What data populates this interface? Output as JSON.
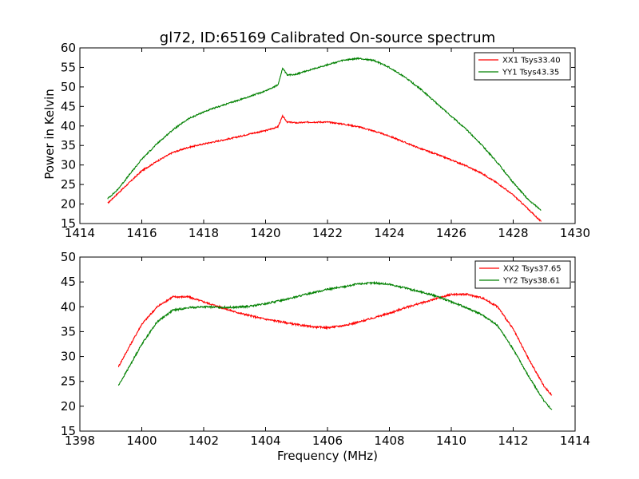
{
  "chart_data": [
    {
      "type": "line",
      "title": "gl72, ID:65169 Calibrated On-source spectrum",
      "xlabel": "",
      "ylabel": "Power in Kelvin",
      "xlim": [
        1414,
        1430
      ],
      "ylim": [
        15,
        60
      ],
      "xticks": [
        1414,
        1416,
        1418,
        1420,
        1422,
        1424,
        1426,
        1428,
        1430
      ],
      "yticks": [
        15,
        20,
        25,
        30,
        35,
        40,
        45,
        50,
        55,
        60
      ],
      "grid": false,
      "legend_position": "top-right",
      "series": [
        {
          "name": "XX1 Tsys33.40",
          "color": "#ff0000",
          "points": [
            [
              1414.9,
              20.2
            ],
            [
              1415.2,
              22.5
            ],
            [
              1415.6,
              25.5
            ],
            [
              1416.0,
              28.5
            ],
            [
              1416.5,
              31.0
            ],
            [
              1417.0,
              33.2
            ],
            [
              1417.5,
              34.5
            ],
            [
              1418.0,
              35.4
            ],
            [
              1418.5,
              36.2
            ],
            [
              1419.0,
              37.0
            ],
            [
              1419.5,
              38.0
            ],
            [
              1420.0,
              38.8
            ],
            [
              1420.4,
              39.8
            ],
            [
              1420.55,
              42.5
            ],
            [
              1420.7,
              41.0
            ],
            [
              1421.0,
              40.8
            ],
            [
              1421.5,
              41.0
            ],
            [
              1422.0,
              41.0
            ],
            [
              1422.5,
              40.5
            ],
            [
              1423.0,
              39.8
            ],
            [
              1423.5,
              38.7
            ],
            [
              1424.0,
              37.4
            ],
            [
              1424.5,
              35.8
            ],
            [
              1425.0,
              34.2
            ],
            [
              1425.5,
              32.8
            ],
            [
              1426.0,
              31.3
            ],
            [
              1426.5,
              29.7
            ],
            [
              1427.0,
              27.8
            ],
            [
              1427.5,
              25.3
            ],
            [
              1428.0,
              22.3
            ],
            [
              1428.5,
              18.6
            ],
            [
              1428.9,
              15.5
            ]
          ]
        },
        {
          "name": "YY1 Tsys43.35",
          "color": "#008000",
          "points": [
            [
              1414.9,
              21.4
            ],
            [
              1415.2,
              23.5
            ],
            [
              1415.6,
              27.5
            ],
            [
              1416.0,
              31.5
            ],
            [
              1416.5,
              35.5
            ],
            [
              1417.0,
              39.0
            ],
            [
              1417.5,
              41.8
            ],
            [
              1418.0,
              43.6
            ],
            [
              1418.5,
              45.0
            ],
            [
              1419.0,
              46.3
            ],
            [
              1419.5,
              47.6
            ],
            [
              1420.0,
              49.0
            ],
            [
              1420.4,
              50.5
            ],
            [
              1420.55,
              54.8
            ],
            [
              1420.7,
              53.0
            ],
            [
              1421.0,
              53.3
            ],
            [
              1421.5,
              54.5
            ],
            [
              1422.0,
              55.7
            ],
            [
              1422.5,
              56.8
            ],
            [
              1423.0,
              57.3
            ],
            [
              1423.5,
              56.8
            ],
            [
              1424.0,
              55.0
            ],
            [
              1424.5,
              52.5
            ],
            [
              1425.0,
              49.5
            ],
            [
              1425.5,
              46.0
            ],
            [
              1426.0,
              42.5
            ],
            [
              1426.5,
              39.0
            ],
            [
              1427.0,
              35.0
            ],
            [
              1427.5,
              30.5
            ],
            [
              1428.0,
              25.5
            ],
            [
              1428.5,
              21.0
            ],
            [
              1428.9,
              18.5
            ]
          ]
        }
      ]
    },
    {
      "type": "line",
      "title": "",
      "xlabel": "Frequency (MHz)",
      "ylabel": "",
      "xlim": [
        1398,
        1414
      ],
      "ylim": [
        15,
        50
      ],
      "xticks": [
        1398,
        1400,
        1402,
        1404,
        1406,
        1408,
        1410,
        1412,
        1414
      ],
      "yticks": [
        15,
        20,
        25,
        30,
        35,
        40,
        45,
        50
      ],
      "grid": false,
      "legend_position": "top-right",
      "series": [
        {
          "name": "XX2 Tsys37.65",
          "color": "#ff0000",
          "points": [
            [
              1399.25,
              28.0
            ],
            [
              1399.6,
              32.0
            ],
            [
              1400.0,
              36.5
            ],
            [
              1400.5,
              40.0
            ],
            [
              1401.0,
              42.0
            ],
            [
              1401.5,
              42.0
            ],
            [
              1402.0,
              41.0
            ],
            [
              1402.5,
              40.0
            ],
            [
              1403.0,
              39.0
            ],
            [
              1403.5,
              38.2
            ],
            [
              1404.0,
              37.5
            ],
            [
              1404.5,
              37.0
            ],
            [
              1405.0,
              36.4
            ],
            [
              1405.5,
              36.0
            ],
            [
              1406.0,
              35.8
            ],
            [
              1406.5,
              36.2
            ],
            [
              1407.0,
              36.9
            ],
            [
              1407.5,
              37.8
            ],
            [
              1408.0,
              38.7
            ],
            [
              1408.5,
              39.8
            ],
            [
              1409.0,
              40.7
            ],
            [
              1409.5,
              41.6
            ],
            [
              1410.0,
              42.5
            ],
            [
              1410.5,
              42.5
            ],
            [
              1411.0,
              41.8
            ],
            [
              1411.5,
              40.0
            ],
            [
              1412.0,
              35.5
            ],
            [
              1412.5,
              29.5
            ],
            [
              1413.0,
              24.0
            ],
            [
              1413.25,
              22.2
            ]
          ]
        },
        {
          "name": "YY2 Tsys38.61",
          "color": "#008000",
          "points": [
            [
              1399.25,
              24.2
            ],
            [
              1399.6,
              28.0
            ],
            [
              1400.0,
              32.5
            ],
            [
              1400.5,
              37.0
            ],
            [
              1401.0,
              39.3
            ],
            [
              1401.5,
              39.8
            ],
            [
              1402.0,
              40.0
            ],
            [
              1402.5,
              39.9
            ],
            [
              1403.0,
              39.9
            ],
            [
              1403.5,
              40.1
            ],
            [
              1404.0,
              40.6
            ],
            [
              1404.5,
              41.3
            ],
            [
              1405.0,
              42.0
            ],
            [
              1405.5,
              42.8
            ],
            [
              1406.0,
              43.5
            ],
            [
              1406.5,
              44.0
            ],
            [
              1407.0,
              44.6
            ],
            [
              1407.5,
              44.8
            ],
            [
              1408.0,
              44.5
            ],
            [
              1408.5,
              43.8
            ],
            [
              1409.0,
              43.0
            ],
            [
              1409.5,
              42.2
            ],
            [
              1410.0,
              41.0
            ],
            [
              1410.5,
              39.8
            ],
            [
              1411.0,
              38.4
            ],
            [
              1411.5,
              36.2
            ],
            [
              1412.0,
              31.5
            ],
            [
              1412.5,
              26.0
            ],
            [
              1413.0,
              21.0
            ],
            [
              1413.25,
              19.3
            ]
          ]
        }
      ]
    }
  ]
}
